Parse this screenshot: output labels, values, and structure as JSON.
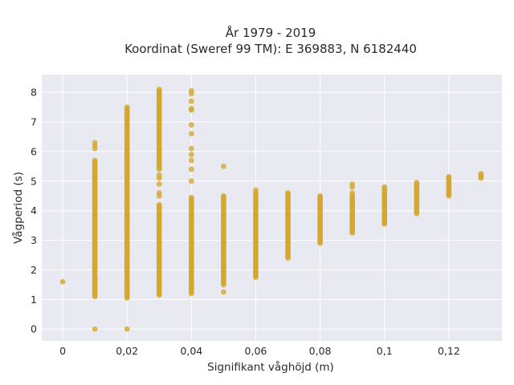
{
  "chart_data": {
    "type": "scatter",
    "title_line1": "År 1979 - 2019",
    "title_line2": "Koordinat (Sweref 99 TM): E 369883, N 6182440",
    "xlabel": "Signifikant våghöjd (m)",
    "ylabel": "Vågperiod (s)",
    "xlim": [
      -0.0065,
      0.1365
    ],
    "ylim": [
      -0.4,
      8.6
    ],
    "x_ticks": [
      0,
      0.02,
      0.04,
      0.06,
      0.08,
      0.1,
      0.12
    ],
    "x_tick_labels": [
      "0",
      "0,02",
      "0,04",
      "0,06",
      "0,08",
      "0,1",
      "0,12"
    ],
    "y_ticks": [
      0,
      1,
      2,
      3,
      4,
      5,
      6,
      7,
      8
    ],
    "y_tick_labels": [
      "0",
      "1",
      "2",
      "3",
      "4",
      "5",
      "6",
      "7",
      "8"
    ],
    "grid": true,
    "background_color": "#e9e9f1",
    "marker_color": "#d4a72c",
    "series": [
      {
        "columns": [
          {
            "x": 0.0,
            "bands": [],
            "points": [
              1.6
            ]
          },
          {
            "x": 0.01,
            "bands": [
              [
                1.9,
                5.7
              ],
              [
                1.1,
                1.8
              ]
            ],
            "points": [
              0,
              6.1,
              6.2,
              6.3
            ]
          },
          {
            "x": 0.02,
            "bands": [
              [
                1.05,
                7.5
              ]
            ],
            "points": [
              0
            ]
          },
          {
            "x": 0.03,
            "bands": [
              [
                1.15,
                4.2
              ],
              [
                5.4,
                8.1
              ]
            ],
            "points": [
              4.5,
              4.6,
              4.9,
              5.1,
              5.2
            ]
          },
          {
            "x": 0.04,
            "bands": [
              [
                1.2,
                4.45
              ]
            ],
            "points": [
              5.0,
              5.4,
              5.7,
              5.9,
              6.1,
              6.6,
              6.9,
              7.4,
              7.45,
              7.7,
              7.95,
              8.05
            ]
          },
          {
            "x": 0.05,
            "bands": [
              [
                1.5,
                4.5
              ]
            ],
            "points": [
              1.25,
              5.5
            ]
          },
          {
            "x": 0.06,
            "bands": [
              [
                1.75,
                4.6
              ]
            ],
            "points": [
              4.7
            ]
          },
          {
            "x": 0.07,
            "bands": [
              [
                2.4,
                4.6
              ]
            ],
            "points": []
          },
          {
            "x": 0.08,
            "bands": [
              [
                2.9,
                4.5
              ]
            ],
            "points": []
          },
          {
            "x": 0.09,
            "bands": [
              [
                3.25,
                4.5
              ]
            ],
            "points": [
              4.6,
              4.8,
              4.9
            ]
          },
          {
            "x": 0.1,
            "bands": [
              [
                3.55,
                4.8
              ]
            ],
            "points": []
          },
          {
            "x": 0.11,
            "bands": [
              [
                3.9,
                4.95
              ]
            ],
            "points": []
          },
          {
            "x": 0.12,
            "bands": [
              [
                4.5,
                5.15
              ]
            ],
            "points": []
          },
          {
            "x": 0.13,
            "bands": [
              [
                5.1,
                5.25
              ]
            ],
            "points": []
          }
        ]
      }
    ]
  }
}
